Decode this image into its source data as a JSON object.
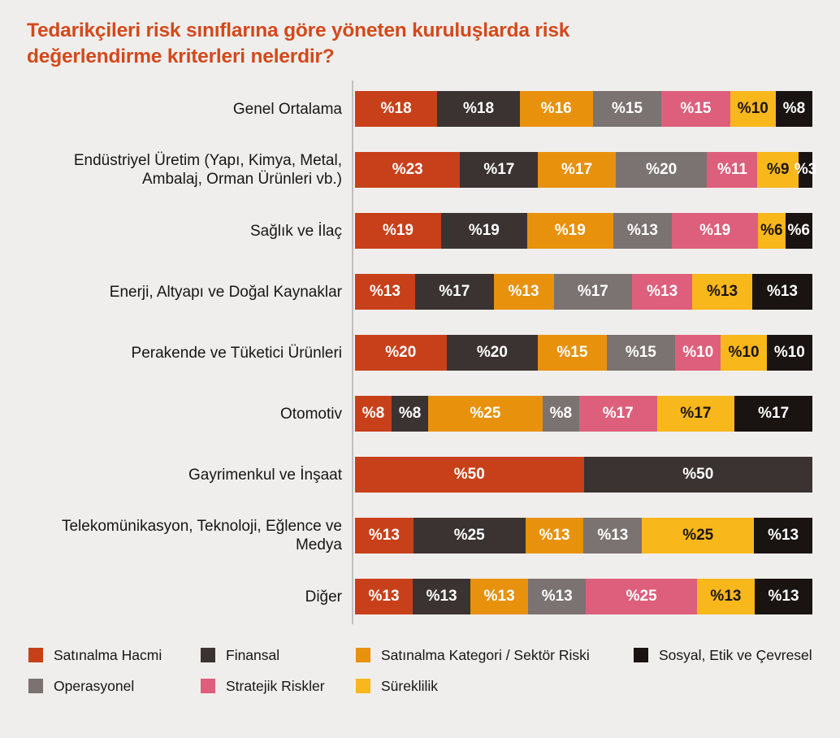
{
  "page": {
    "background_color": "#f0eeec",
    "title_color": "#d3491b",
    "axis_line_color": "#c3bfbd",
    "text_color": "#161616"
  },
  "title": {
    "text": "Tedarikçileri risk sınıflarına göre yöneten kuruluşlarda risk değerlendirme kriterleri nelerdir?"
  },
  "chart_data": {
    "type": "bar",
    "subtype": "horizontal-stacked",
    "unit": "percent",
    "value_prefix": "%",
    "xlim": [
      0,
      100
    ],
    "grid": false,
    "legend_position": "bottom",
    "series": [
      {
        "id": "satinalma_hacmi",
        "name": "Satınalma Hacmi",
        "color": "#c8401a",
        "label_color": "#ffffff"
      },
      {
        "id": "finansal",
        "name": "Finansal",
        "color": "#3a3331",
        "label_color": "#ffffff"
      },
      {
        "id": "satinalma_kategori",
        "name": "Satınalma Kategori / Sektör Riski",
        "color": "#e8910d",
        "label_color": "#ffffff"
      },
      {
        "id": "operasyonel",
        "name": "Operasyonel",
        "color": "#7b7371",
        "label_color": "#ffffff"
      },
      {
        "id": "stratejik",
        "name": "Stratejik Riskler",
        "color": "#dd5f7c",
        "label_color": "#ffffff"
      },
      {
        "id": "sureklilik",
        "name": "Süreklilik",
        "color": "#f8b71b",
        "label_color": "#1a1413"
      },
      {
        "id": "sosyal",
        "name": "Sosyal, Etik ve Çevresel",
        "color": "#191312",
        "label_color": "#ffffff"
      }
    ],
    "legend_order": [
      "satinalma_hacmi",
      "finansal",
      "satinalma_kategori",
      "sosyal",
      "operasyonel",
      "stratejik",
      "sureklilik"
    ],
    "rows": [
      {
        "label": "Genel Ortalama",
        "segments": [
          {
            "series": "satinalma_hacmi",
            "value": 18
          },
          {
            "series": "finansal",
            "value": 18
          },
          {
            "series": "satinalma_kategori",
            "value": 16
          },
          {
            "series": "operasyonel",
            "value": 15
          },
          {
            "series": "stratejik",
            "value": 15
          },
          {
            "series": "sureklilik",
            "value": 10
          },
          {
            "series": "sosyal",
            "value": 8
          }
        ]
      },
      {
        "label": "Endüstriyel Üretim (Yapı, Kimya, Metal, Ambalaj, Orman Ürünleri vb.)",
        "segments": [
          {
            "series": "satinalma_hacmi",
            "value": 23
          },
          {
            "series": "finansal",
            "value": 17
          },
          {
            "series": "satinalma_kategori",
            "value": 17
          },
          {
            "series": "operasyonel",
            "value": 20
          },
          {
            "series": "stratejik",
            "value": 11
          },
          {
            "series": "sureklilik",
            "value": 9
          },
          {
            "series": "sosyal",
            "value": 3
          }
        ]
      },
      {
        "label": "Sağlık ve İlaç",
        "segments": [
          {
            "series": "satinalma_hacmi",
            "value": 19
          },
          {
            "series": "finansal",
            "value": 19
          },
          {
            "series": "satinalma_kategori",
            "value": 19
          },
          {
            "series": "operasyonel",
            "value": 13
          },
          {
            "series": "stratejik",
            "value": 19
          },
          {
            "series": "sureklilik",
            "value": 6
          },
          {
            "series": "sosyal",
            "value": 6
          }
        ]
      },
      {
        "label": "Enerji, Altyapı ve Doğal Kaynaklar",
        "segments": [
          {
            "series": "satinalma_hacmi",
            "value": 13
          },
          {
            "series": "finansal",
            "value": 17
          },
          {
            "series": "satinalma_kategori",
            "value": 13
          },
          {
            "series": "operasyonel",
            "value": 17
          },
          {
            "series": "stratejik",
            "value": 13
          },
          {
            "series": "sureklilik",
            "value": 13
          },
          {
            "series": "sosyal",
            "value": 13
          }
        ]
      },
      {
        "label": "Perakende ve Tüketici Ürünleri",
        "segments": [
          {
            "series": "satinalma_hacmi",
            "value": 20
          },
          {
            "series": "finansal",
            "value": 20
          },
          {
            "series": "satinalma_kategori",
            "value": 15
          },
          {
            "series": "operasyonel",
            "value": 15
          },
          {
            "series": "stratejik",
            "value": 10
          },
          {
            "series": "sureklilik",
            "value": 10
          },
          {
            "series": "sosyal",
            "value": 10
          }
        ]
      },
      {
        "label": "Otomotiv",
        "segments": [
          {
            "series": "satinalma_hacmi",
            "value": 8
          },
          {
            "series": "finansal",
            "value": 8
          },
          {
            "series": "satinalma_kategori",
            "value": 25
          },
          {
            "series": "operasyonel",
            "value": 8
          },
          {
            "series": "stratejik",
            "value": 17
          },
          {
            "series": "sureklilik",
            "value": 17
          },
          {
            "series": "sosyal",
            "value": 17
          }
        ]
      },
      {
        "label": "Gayrimenkul ve İnşaat",
        "segments": [
          {
            "series": "satinalma_hacmi",
            "value": 50
          },
          {
            "series": "finansal",
            "value": 50
          }
        ]
      },
      {
        "label": "Telekomünikasyon, Teknoloji, Eğlence ve Medya",
        "segments": [
          {
            "series": "satinalma_hacmi",
            "value": 13
          },
          {
            "series": "finansal",
            "value": 25
          },
          {
            "series": "satinalma_kategori",
            "value": 13
          },
          {
            "series": "operasyonel",
            "value": 13
          },
          {
            "series": "sureklilik",
            "value": 25
          },
          {
            "series": "sosyal",
            "value": 13
          }
        ]
      },
      {
        "label": "Diğer",
        "segments": [
          {
            "series": "satinalma_hacmi",
            "value": 13
          },
          {
            "series": "finansal",
            "value": 13
          },
          {
            "series": "satinalma_kategori",
            "value": 13
          },
          {
            "series": "operasyonel",
            "value": 13
          },
          {
            "series": "stratejik",
            "value": 25
          },
          {
            "series": "sureklilik",
            "value": 13
          },
          {
            "series": "sosyal",
            "value": 13
          }
        ]
      }
    ]
  }
}
